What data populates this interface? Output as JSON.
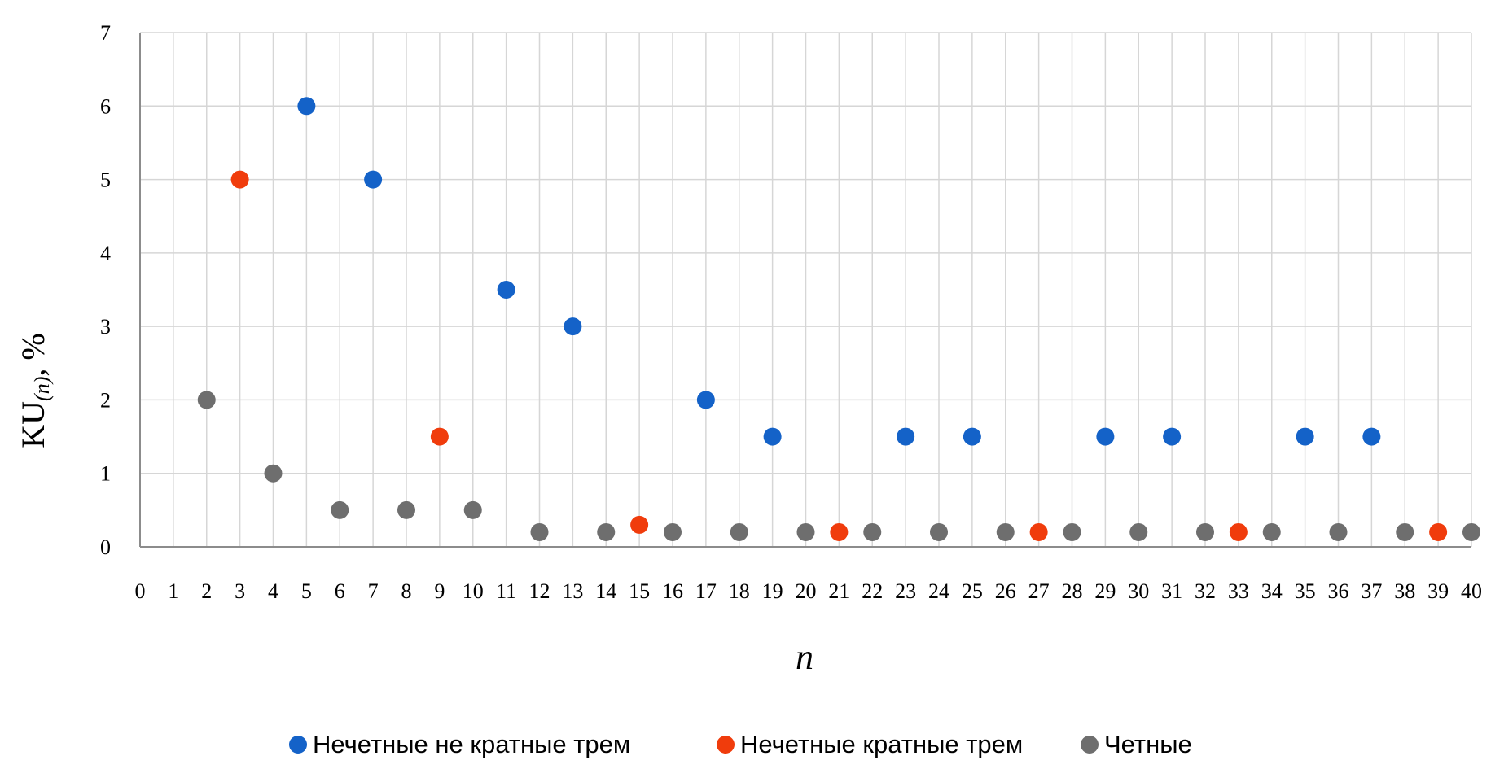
{
  "chart_data": {
    "type": "scatter",
    "title": "",
    "xlabel": "n",
    "ylabel": {
      "main": "KU",
      "subscript": "(n)",
      "suffix": ", %"
    },
    "xlim": [
      0,
      40
    ],
    "ylim": [
      0,
      7
    ],
    "x_ticks": [
      0,
      1,
      2,
      3,
      4,
      5,
      6,
      7,
      8,
      9,
      10,
      11,
      12,
      13,
      14,
      15,
      16,
      17,
      18,
      19,
      20,
      21,
      22,
      23,
      24,
      25,
      26,
      27,
      28,
      29,
      30,
      31,
      32,
      33,
      34,
      35,
      36,
      37,
      38,
      39,
      40
    ],
    "y_ticks": [
      0,
      1,
      2,
      3,
      4,
      5,
      6,
      7
    ],
    "grid": true,
    "legend_position": "bottom",
    "series": [
      {
        "name": "Нечетные не кратные трем",
        "color": "#1462c8",
        "points": [
          [
            5,
            6
          ],
          [
            7,
            5
          ],
          [
            11,
            3.5
          ],
          [
            13,
            3
          ],
          [
            17,
            2
          ],
          [
            19,
            1.5
          ],
          [
            23,
            1.5
          ],
          [
            25,
            1.5
          ],
          [
            29,
            1.5
          ],
          [
            31,
            1.5
          ],
          [
            35,
            1.5
          ],
          [
            37,
            1.5
          ]
        ]
      },
      {
        "name": "Нечетные кратные трем",
        "color": "#f03c0c",
        "points": [
          [
            3,
            5
          ],
          [
            9,
            1.5
          ],
          [
            15,
            0.3
          ],
          [
            21,
            0.2
          ],
          [
            27,
            0.2
          ],
          [
            33,
            0.2
          ],
          [
            39,
            0.2
          ]
        ]
      },
      {
        "name": "Четные",
        "color": "#6e6e6e",
        "points": [
          [
            2,
            2
          ],
          [
            4,
            1
          ],
          [
            6,
            0.5
          ],
          [
            8,
            0.5
          ],
          [
            10,
            0.5
          ],
          [
            12,
            0.2
          ],
          [
            14,
            0.2
          ],
          [
            16,
            0.2
          ],
          [
            18,
            0.2
          ],
          [
            20,
            0.2
          ],
          [
            22,
            0.2
          ],
          [
            24,
            0.2
          ],
          [
            26,
            0.2
          ],
          [
            28,
            0.2
          ],
          [
            30,
            0.2
          ],
          [
            32,
            0.2
          ],
          [
            34,
            0.2
          ],
          [
            36,
            0.2
          ],
          [
            38,
            0.2
          ],
          [
            40,
            0.2
          ]
        ]
      }
    ]
  }
}
